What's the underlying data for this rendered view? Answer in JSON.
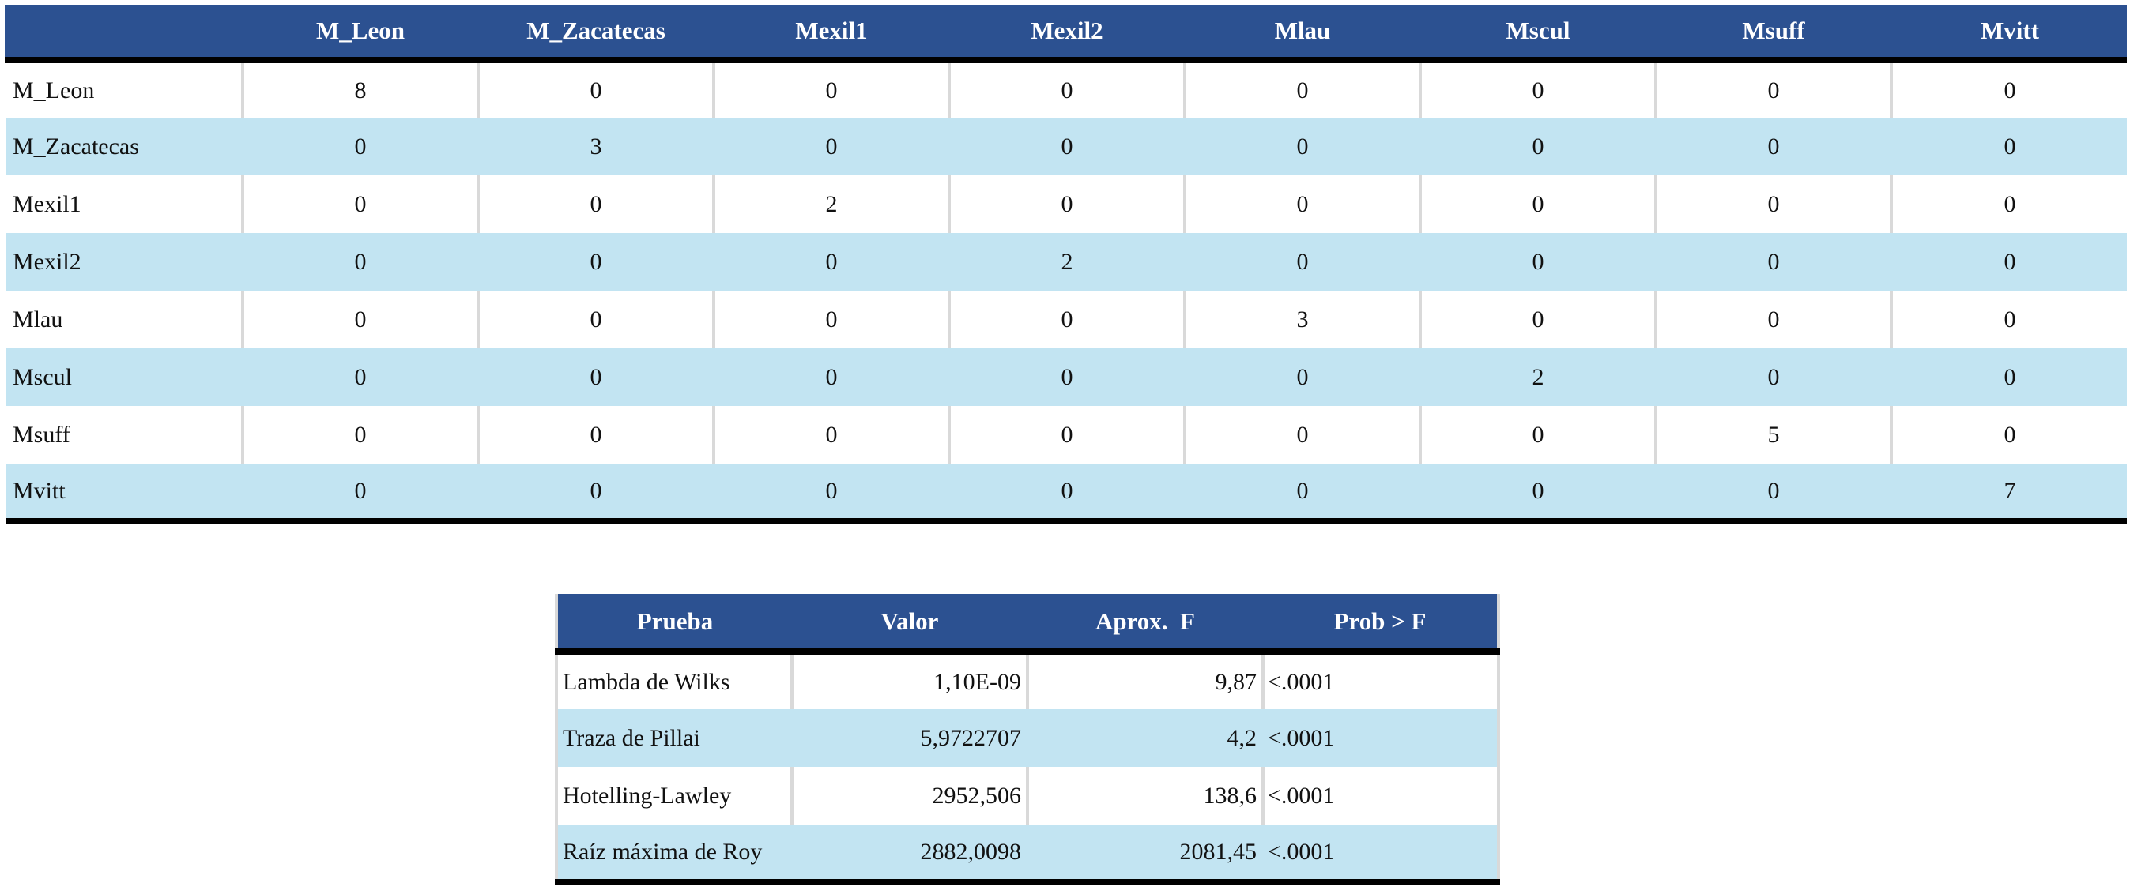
{
  "matrix": {
    "columns": [
      "",
      "M_Leon",
      "M_Zacatecas",
      "Mexil1",
      "Mexil2",
      "Mlau",
      "Mscul",
      "Msuff",
      "Mvitt"
    ],
    "rows": [
      {
        "label": "M_Leon",
        "values": [
          "8",
          "0",
          "0",
          "0",
          "0",
          "0",
          "0",
          "0"
        ]
      },
      {
        "label": "M_Zacatecas",
        "values": [
          "0",
          "3",
          "0",
          "0",
          "0",
          "0",
          "0",
          "0"
        ]
      },
      {
        "label": "Mexil1",
        "values": [
          "0",
          "0",
          "2",
          "0",
          "0",
          "0",
          "0",
          "0"
        ]
      },
      {
        "label": "Mexil2",
        "values": [
          "0",
          "0",
          "0",
          "2",
          "0",
          "0",
          "0",
          "0"
        ]
      },
      {
        "label": "Mlau",
        "values": [
          "0",
          "0",
          "0",
          "0",
          "3",
          "0",
          "0",
          "0"
        ]
      },
      {
        "label": "Mscul",
        "values": [
          "0",
          "0",
          "0",
          "0",
          "0",
          "2",
          "0",
          "0"
        ]
      },
      {
        "label": "Msuff",
        "values": [
          "0",
          "0",
          "0",
          "0",
          "0",
          "0",
          "5",
          "0"
        ]
      },
      {
        "label": "Mvitt",
        "values": [
          "0",
          "0",
          "0",
          "0",
          "0",
          "0",
          "0",
          "7"
        ]
      }
    ]
  },
  "tests": {
    "columns": [
      "Prueba",
      "Valor",
      "Aprox.  F",
      "Prob > F"
    ],
    "rows": [
      {
        "prueba": "Lambda de Wilks",
        "valor": "1,10E-09",
        "f": "9,87",
        "prob": "<.0001"
      },
      {
        "prueba": "Traza de Pillai",
        "valor": "5,9722707",
        "f": "4,2",
        "prob": "<.0001"
      },
      {
        "prueba": "Hotelling-Lawley",
        "valor": "2952,506",
        "f": "138,6",
        "prob": "<.0001"
      },
      {
        "prueba": "Raíz máxima de Roy",
        "valor": "2882,0098",
        "f": "2081,45",
        "prob": "<.0001"
      }
    ]
  },
  "colors": {
    "header_bg": "#2c5191",
    "stripe_bg": "#c2e4f2",
    "rule": "#000000"
  }
}
